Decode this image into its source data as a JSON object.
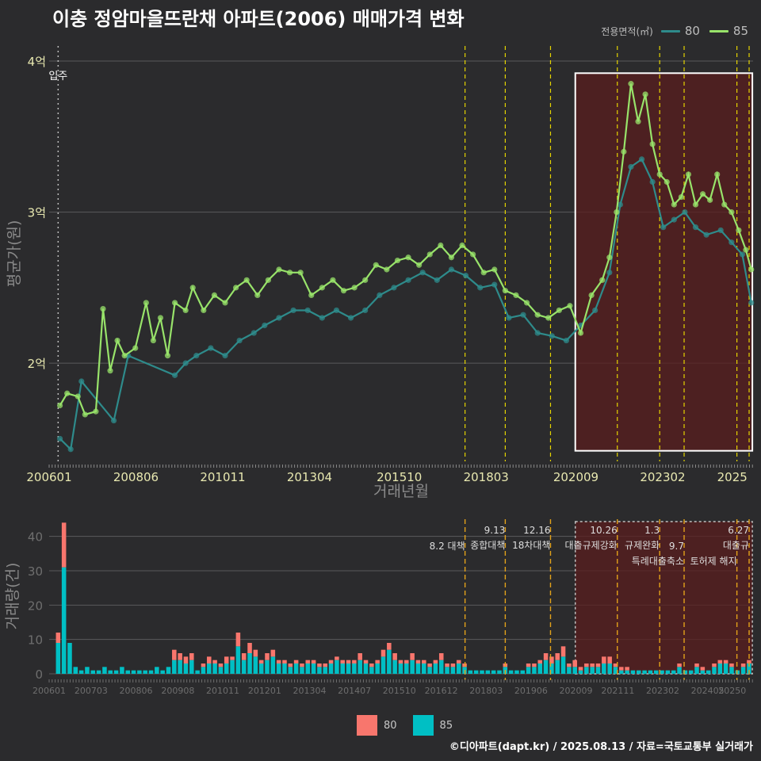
{
  "title": "이충 정암마을뜨란채 아파트(2006) 매매가격 변화",
  "legend_top": {
    "label": "전용면적(㎡)",
    "items": [
      {
        "name": "80",
        "color": "#2e8b8b"
      },
      {
        "name": "85",
        "color": "#98e36a"
      }
    ]
  },
  "legend_bottom": {
    "items": [
      {
        "name": "80",
        "color": "#f8766d"
      },
      {
        "name": "85",
        "color": "#00bfc4"
      }
    ]
  },
  "footer": "©디아파트(dapt.kr) / 2025.08.13 / 자료=국토교통부 실거래가",
  "colors": {
    "background": "#2b2b2d",
    "grid": "#5a5a5c",
    "axis_text": "#e8e8b0",
    "axis_text_dim": "#6e6e6e",
    "highlight_fill": "#5a1e1e",
    "dashed": "#e5d400",
    "dashed_orange": "#e3a21a"
  },
  "chart_data": [
    {
      "type": "line",
      "title": "이충 정암마을뜨란채 아파트(2006) 매매가격 변화",
      "xlabel": "거래년월",
      "ylabel": "평균가(원)",
      "x_ticks": [
        "200601",
        "200806",
        "201011",
        "201304",
        "201510",
        "201803",
        "202009",
        "202302",
        "2025"
      ],
      "y_ticks": [
        {
          "value": 2.0,
          "label": "2억"
        },
        {
          "value": 3.0,
          "label": "3억"
        },
        {
          "value": 4.0,
          "label": "4억"
        }
      ],
      "ylim": [
        1.35,
        4.1
      ],
      "xlim": [
        2006.0,
        2025.6
      ],
      "move_in": {
        "date": 2006.25,
        "label": "입주"
      },
      "policy_lines": [
        2017.58,
        2018.7,
        2019.96,
        2021.82,
        2023.0,
        2023.68,
        2025.15,
        2025.49
      ],
      "highlight": {
        "from": 2020.65,
        "to": 2025.58,
        "y_from": 1.42,
        "y_to": 3.92
      },
      "series": [
        {
          "name": "85",
          "points": [
            [
              2006.3,
              1.72
            ],
            [
              2006.5,
              1.8
            ],
            [
              2006.8,
              1.78
            ],
            [
              2007.0,
              1.66
            ],
            [
              2007.3,
              1.68
            ],
            [
              2007.5,
              2.36
            ],
            [
              2007.7,
              1.95
            ],
            [
              2007.9,
              2.15
            ],
            [
              2008.1,
              2.05
            ],
            [
              2008.4,
              2.1
            ],
            [
              2008.7,
              2.4
            ],
            [
              2008.9,
              2.15
            ],
            [
              2009.1,
              2.3
            ],
            [
              2009.3,
              2.05
            ],
            [
              2009.5,
              2.4
            ],
            [
              2009.8,
              2.35
            ],
            [
              2010.0,
              2.5
            ],
            [
              2010.3,
              2.35
            ],
            [
              2010.6,
              2.45
            ],
            [
              2010.9,
              2.4
            ],
            [
              2011.2,
              2.5
            ],
            [
              2011.5,
              2.55
            ],
            [
              2011.8,
              2.45
            ],
            [
              2012.1,
              2.55
            ],
            [
              2012.4,
              2.62
            ],
            [
              2012.7,
              2.6
            ],
            [
              2013.0,
              2.6
            ],
            [
              2013.3,
              2.45
            ],
            [
              2013.6,
              2.5
            ],
            [
              2013.9,
              2.55
            ],
            [
              2014.2,
              2.48
            ],
            [
              2014.5,
              2.5
            ],
            [
              2014.8,
              2.55
            ],
            [
              2015.1,
              2.65
            ],
            [
              2015.4,
              2.62
            ],
            [
              2015.7,
              2.68
            ],
            [
              2016.0,
              2.7
            ],
            [
              2016.3,
              2.65
            ],
            [
              2016.6,
              2.72
            ],
            [
              2016.9,
              2.78
            ],
            [
              2017.2,
              2.7
            ],
            [
              2017.5,
              2.78
            ],
            [
              2017.8,
              2.72
            ],
            [
              2018.1,
              2.6
            ],
            [
              2018.4,
              2.62
            ],
            [
              2018.7,
              2.48
            ],
            [
              2019.0,
              2.45
            ],
            [
              2019.3,
              2.4
            ],
            [
              2019.6,
              2.32
            ],
            [
              2019.9,
              2.3
            ],
            [
              2020.2,
              2.35
            ],
            [
              2020.5,
              2.38
            ],
            [
              2020.8,
              2.2
            ],
            [
              2021.1,
              2.45
            ],
            [
              2021.4,
              2.55
            ],
            [
              2021.6,
              2.7
            ],
            [
              2021.8,
              3.0
            ],
            [
              2022.0,
              3.4
            ],
            [
              2022.2,
              3.85
            ],
            [
              2022.4,
              3.6
            ],
            [
              2022.6,
              3.78
            ],
            [
              2022.8,
              3.45
            ],
            [
              2023.0,
              3.25
            ],
            [
              2023.2,
              3.2
            ],
            [
              2023.4,
              3.05
            ],
            [
              2023.6,
              3.1
            ],
            [
              2023.8,
              3.25
            ],
            [
              2024.0,
              3.05
            ],
            [
              2024.2,
              3.12
            ],
            [
              2024.4,
              3.08
            ],
            [
              2024.6,
              3.25
            ],
            [
              2024.8,
              3.05
            ],
            [
              2025.0,
              3.0
            ],
            [
              2025.2,
              2.88
            ],
            [
              2025.4,
              2.75
            ],
            [
              2025.55,
              2.62
            ]
          ]
        },
        {
          "name": "80",
          "points": [
            [
              2006.3,
              1.5
            ],
            [
              2006.6,
              1.43
            ],
            [
              2006.9,
              1.88
            ],
            [
              2007.8,
              1.62
            ],
            [
              2008.2,
              2.05
            ],
            [
              2009.5,
              1.92
            ],
            [
              2009.8,
              2.0
            ],
            [
              2010.1,
              2.05
            ],
            [
              2010.5,
              2.1
            ],
            [
              2010.9,
              2.05
            ],
            [
              2011.3,
              2.15
            ],
            [
              2011.7,
              2.2
            ],
            [
              2012.0,
              2.25
            ],
            [
              2012.4,
              2.3
            ],
            [
              2012.8,
              2.35
            ],
            [
              2013.2,
              2.35
            ],
            [
              2013.6,
              2.3
            ],
            [
              2014.0,
              2.35
            ],
            [
              2014.4,
              2.3
            ],
            [
              2014.8,
              2.35
            ],
            [
              2015.2,
              2.45
            ],
            [
              2015.6,
              2.5
            ],
            [
              2016.0,
              2.55
            ],
            [
              2016.4,
              2.6
            ],
            [
              2016.8,
              2.55
            ],
            [
              2017.2,
              2.62
            ],
            [
              2017.6,
              2.58
            ],
            [
              2018.0,
              2.5
            ],
            [
              2018.4,
              2.52
            ],
            [
              2018.8,
              2.3
            ],
            [
              2019.2,
              2.32
            ],
            [
              2019.6,
              2.2
            ],
            [
              2020.0,
              2.18
            ],
            [
              2020.4,
              2.15
            ],
            [
              2020.8,
              2.25
            ],
            [
              2021.2,
              2.35
            ],
            [
              2021.6,
              2.6
            ],
            [
              2021.9,
              3.05
            ],
            [
              2022.2,
              3.3
            ],
            [
              2022.5,
              3.35
            ],
            [
              2022.8,
              3.2
            ],
            [
              2023.1,
              2.9
            ],
            [
              2023.4,
              2.95
            ],
            [
              2023.7,
              3.0
            ],
            [
              2024.0,
              2.9
            ],
            [
              2024.3,
              2.85
            ],
            [
              2024.7,
              2.88
            ],
            [
              2025.0,
              2.8
            ],
            [
              2025.3,
              2.72
            ],
            [
              2025.55,
              2.4
            ]
          ]
        }
      ]
    },
    {
      "type": "bar",
      "xlabel": "",
      "ylabel": "거래량(건)",
      "x_ticks": [
        "200601",
        "200703",
        "200806",
        "200908",
        "201011",
        "201201",
        "201304",
        "201407",
        "201510",
        "201612",
        "201803",
        "201906",
        "202009",
        "202111",
        "202302",
        "202405",
        "20250"
      ],
      "y_ticks": [
        0,
        10,
        20,
        30,
        40
      ],
      "ylim": [
        0,
        45
      ],
      "xlim": [
        2006.0,
        2025.6
      ],
      "highlight": {
        "from": 2020.65,
        "to": 2025.58
      },
      "policy_annotations": [
        {
          "x": 2017.58,
          "label": "8.2 대책",
          "color": "orange",
          "row": 1
        },
        {
          "x": 2018.7,
          "label": "9.13",
          "label2": "종합대책",
          "color": "orange",
          "row": 0
        },
        {
          "x": 2019.96,
          "label": "12.16",
          "label2": "18차대책",
          "color": "orange",
          "row": 0
        },
        {
          "x": 2021.82,
          "label": "10.26",
          "label2": "대출규제강화",
          "color": "orange",
          "row": 0
        },
        {
          "x": 2023.0,
          "label": "1.3",
          "label2": "규제완화",
          "color": "orange",
          "row": 0
        },
        {
          "x": 2023.68,
          "label": "9.7",
          "label2": "특례대출축소",
          "color": "orange",
          "row": 1
        },
        {
          "x": 2025.15,
          "label": "",
          "label2": "토허제 해지",
          "color": "orange",
          "row": 1
        },
        {
          "x": 2025.49,
          "label": "6.27",
          "label2": "대출규",
          "color": "orange",
          "row": 0
        }
      ],
      "series": [
        {
          "name": "85",
          "values": [
            9,
            31,
            9,
            2,
            1,
            2,
            1,
            1,
            2,
            1,
            1,
            2,
            1,
            1,
            1,
            1,
            1,
            2,
            1,
            2,
            4,
            4,
            3,
            4,
            1,
            2,
            3,
            3,
            2,
            3,
            4,
            8,
            4,
            6,
            5,
            3,
            4,
            5,
            3,
            3,
            2,
            3,
            2,
            3,
            3,
            2,
            2,
            3,
            4,
            3,
            3,
            3,
            4,
            3,
            2,
            3,
            5,
            7,
            4,
            3,
            3,
            4,
            3,
            3,
            2,
            3,
            4,
            2,
            2,
            3,
            2,
            1,
            1,
            1,
            1,
            1,
            1,
            2,
            1,
            1,
            1,
            2,
            2,
            3,
            4,
            3,
            4,
            5,
            2,
            2,
            1,
            2,
            2,
            2,
            3,
            3,
            2,
            1,
            1,
            1,
            1,
            1,
            1,
            1,
            1,
            1,
            1,
            2,
            1,
            1,
            2,
            1,
            1,
            2,
            3,
            3,
            2,
            1,
            2,
            3
          ]
        },
        {
          "name": "80",
          "values": [
            3,
            13,
            0,
            0,
            0,
            0,
            0,
            0,
            0,
            0,
            0,
            0,
            0,
            0,
            0,
            0,
            0,
            0,
            0,
            0,
            3,
            2,
            2,
            2,
            0,
            1,
            2,
            1,
            1,
            2,
            1,
            4,
            2,
            3,
            2,
            1,
            2,
            2,
            1,
            1,
            1,
            1,
            1,
            1,
            1,
            1,
            1,
            1,
            1,
            1,
            1,
            1,
            2,
            1,
            1,
            1,
            2,
            2,
            2,
            1,
            1,
            2,
            1,
            1,
            1,
            1,
            2,
            1,
            1,
            1,
            1,
            0,
            0,
            0,
            0,
            0,
            0,
            1,
            0,
            0,
            0,
            1,
            1,
            1,
            2,
            2,
            2,
            3,
            1,
            2,
            1,
            1,
            1,
            1,
            2,
            2,
            1,
            1,
            1,
            0,
            0,
            0,
            0,
            0,
            0,
            0,
            0,
            1,
            0,
            0,
            1,
            1,
            0,
            1,
            1,
            1,
            1,
            0,
            1,
            1
          ]
        }
      ]
    }
  ]
}
